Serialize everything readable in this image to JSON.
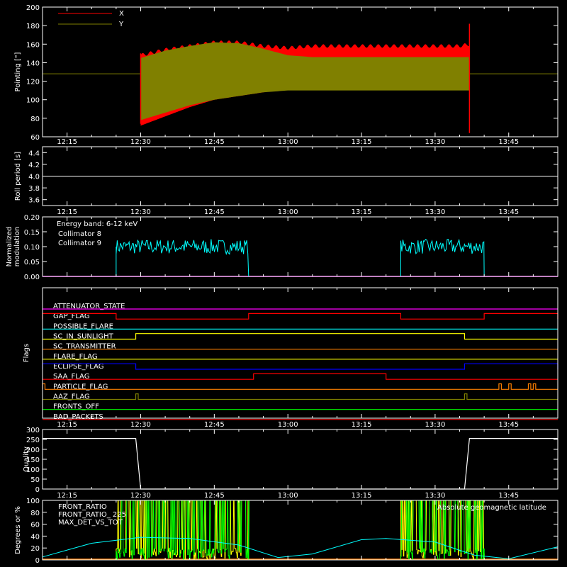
{
  "time_ticks": [
    "12:15",
    "12:30",
    "12:45",
    "13:00",
    "13:15",
    "13:30",
    "13:45"
  ],
  "colors": {
    "x": "#ff0000",
    "y": "#808000",
    "white": "#ffffff",
    "cyan": "#00ffff",
    "magenta": "#ff00ff",
    "green": "#00ff00",
    "blue": "#0000ff",
    "yellow": "#ffff00",
    "orange": "#ff8000",
    "red": "#ff2020"
  },
  "chart_data": [
    {
      "type": "area",
      "ylabel": "Pointing [\"]",
      "ylim": [
        60,
        200
      ],
      "yticks": [
        "60",
        "80",
        "100",
        "120",
        "140",
        "160",
        "180",
        "200"
      ],
      "x_range": [
        "12:10",
        "13:55"
      ],
      "series": [
        {
          "name": "X",
          "color": "red",
          "x": [
            "12:30",
            "12:35",
            "12:40",
            "12:45",
            "12:50",
            "12:55",
            "13:00",
            "13:05",
            "13:10",
            "13:15",
            "13:20",
            "13:25",
            "13:30",
            "13:35",
            "13:37"
          ],
          "high": [
            148,
            154,
            158,
            162,
            162,
            158,
            156,
            158,
            158,
            158,
            158,
            158,
            158,
            158,
            160
          ],
          "low": [
            72,
            82,
            92,
            100,
            104,
            108,
            112,
            112,
            112,
            112,
            112,
            112,
            112,
            112,
            112
          ]
        },
        {
          "name": "Y",
          "color": "olive",
          "x": [
            "12:30",
            "12:35",
            "12:40",
            "12:45",
            "12:50",
            "12:55",
            "13:00",
            "13:05",
            "13:10",
            "13:15",
            "13:20",
            "13:25",
            "13:30",
            "13:35",
            "13:37"
          ],
          "high": [
            145,
            153,
            158,
            162,
            161,
            155,
            148,
            146,
            146,
            146,
            146,
            146,
            146,
            146,
            146
          ],
          "low": [
            78,
            86,
            94,
            100,
            104,
            108,
            110,
            110,
            110,
            110,
            110,
            110,
            110,
            110,
            110
          ],
          "constant_outside": 128
        }
      ],
      "legend": "top-left"
    },
    {
      "type": "line",
      "ylabel": "Roll period [s]",
      "ylim": [
        3.5,
        4.5
      ],
      "yticks": [
        "3.6",
        "3.8",
        "4.0",
        "4.2",
        "4.4"
      ],
      "x": [
        "12:10",
        "13:55"
      ],
      "values": [
        4.0,
        4.0
      ]
    },
    {
      "type": "line",
      "ylabel": "Normalized modulation",
      "ylim": [
        0.0,
        0.2
      ],
      "yticks": [
        "0.00",
        "0.05",
        "0.10",
        "0.15",
        "0.20"
      ],
      "annotation": "Energy band: 6-12 keV",
      "series": [
        {
          "name": "Collimator 8",
          "color": "cyan",
          "segments": [
            {
              "start": "12:25",
              "end": "12:52",
              "mean": 0.1
            },
            {
              "start": "13:23",
              "end": "13:40",
              "mean": 0.1
            }
          ]
        },
        {
          "name": "Collimator 9",
          "color": "magenta",
          "value": 0.0
        }
      ],
      "legend": "top-left"
    },
    {
      "type": "line",
      "ylabel": "Flags",
      "flags": [
        {
          "name": "ATTENUATOR_STATE",
          "color": "magenta",
          "on": []
        },
        {
          "name": "GAP_FLAG",
          "color": "red",
          "on": [
            [
              "12:10",
              "12:25"
            ],
            [
              "12:52",
              "13:23"
            ],
            [
              "13:40",
              "13:55"
            ]
          ]
        },
        {
          "name": "POSSIBLE_FLARE",
          "color": "cyan",
          "on": []
        },
        {
          "name": "SC_IN_SUNLIGHT",
          "color": "yellow",
          "on": [
            [
              "12:29",
              "13:36"
            ]
          ]
        },
        {
          "name": "SC_TRANSMITTER",
          "color": "orange",
          "on": []
        },
        {
          "name": "FLARE_FLAG",
          "color": "yellow",
          "on": []
        },
        {
          "name": "ECLIPSE_FLAG",
          "color": "blue",
          "on": [
            [
              "12:10",
              "12:29"
            ],
            [
              "13:36",
              "13:55"
            ]
          ]
        },
        {
          "name": "SAA_FLAG",
          "color": "red",
          "on": [
            [
              "12:53",
              "13:20"
            ]
          ]
        },
        {
          "name": "PARTICLE_FLAG",
          "color": "orange",
          "on": [
            [
              "12:10",
              "12:10.5"
            ],
            [
              "13:43",
              "13:43.5"
            ],
            [
              "13:45",
              "13:45.5"
            ],
            [
              "13:49",
              "13:49.5"
            ],
            [
              "13:50",
              "13:50.5"
            ]
          ]
        },
        {
          "name": "AAZ_FLAG",
          "color": "olive",
          "on": [
            [
              "12:29",
              "12:29.5"
            ],
            [
              "13:36",
              "13:36.5"
            ]
          ]
        },
        {
          "name": "FRONTS_OFF",
          "color": "green",
          "on": []
        },
        {
          "name": "BAD_PACKETS",
          "color": "red",
          "on": []
        }
      ]
    },
    {
      "type": "line",
      "ylabel": "Quality",
      "ylim": [
        0,
        300
      ],
      "yticks": [
        "0",
        "50",
        "100",
        "150",
        "200",
        "250",
        "300"
      ],
      "x": [
        "12:10",
        "12:29",
        "12:30",
        "13:36",
        "13:37",
        "13:55"
      ],
      "values": [
        255,
        255,
        0,
        0,
        255,
        255
      ]
    },
    {
      "type": "line",
      "ylabel": "Degrees or %",
      "ylim": [
        0,
        100
      ],
      "yticks": [
        "0",
        "20",
        "40",
        "60",
        "80",
        "100"
      ],
      "series": [
        {
          "name": "FRONT_RATIO",
          "color": "yellow",
          "segments": [
            [
              "12:25",
              "12:52"
            ],
            [
              "13:23",
              "13:40"
            ]
          ],
          "value": 100
        },
        {
          "name": "FRONT_RATIO_ 225",
          "color": "green",
          "segments": [
            [
              "12:25",
              "12:52"
            ],
            [
              "13:23",
              "13:40"
            ]
          ],
          "value": 100
        },
        {
          "name": "MAX_DET_VS_TOT",
          "color": "orange",
          "value": 0
        },
        {
          "name": "Absolute geomagnetic latitude",
          "color": "cyan",
          "x": [
            "12:10",
            "12:20",
            "12:30",
            "12:40",
            "12:50",
            "12:58",
            "13:05",
            "13:15",
            "13:20",
            "13:30",
            "13:38",
            "13:45",
            "13:55"
          ],
          "values": [
            5,
            28,
            38,
            36,
            25,
            4,
            10,
            34,
            36,
            30,
            8,
            2,
            22
          ]
        }
      ]
    }
  ]
}
